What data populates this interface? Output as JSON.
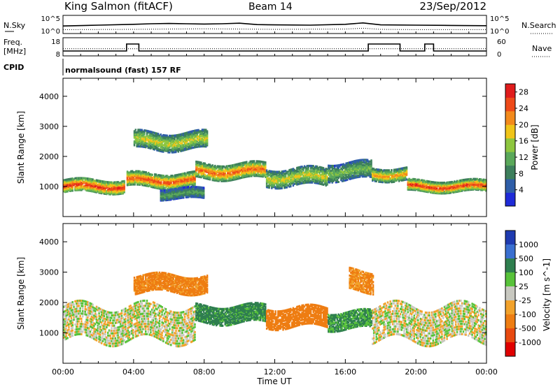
{
  "header": {
    "station": "King Salmon (fitACF)",
    "beam": "Beam 14",
    "date": "23/Sep/2012"
  },
  "noise_panel": {
    "left_label": "N.Sky",
    "left_ticks": [
      "10^5",
      "10^0"
    ],
    "right_ticks": [
      "10^5",
      "10^0"
    ],
    "right_label": "N.Search"
  },
  "freq_panel": {
    "left_label_1": "Freq.",
    "left_label_2": "[MHz]",
    "left_ticks": [
      "18",
      "8"
    ],
    "right_ticks": [
      "60",
      "0"
    ],
    "right_label": "Nave"
  },
  "cpid_panel": {
    "label": "CPID",
    "program": "normalsound (fast) 157 RF"
  },
  "colors": {
    "power_scale": [
      "#1f2bd8",
      "#2f5ea8",
      "#3d7f5c",
      "#5aa85a",
      "#8ec63f",
      "#f0c419",
      "#f38a1c",
      "#ee4a19",
      "#e01c1c"
    ],
    "velocity_scale": [
      "#1f3bb0",
      "#3a6fd0",
      "#2f7f4f",
      "#58c23a",
      "#c8c8c0",
      "#f2a22b",
      "#ee7d12",
      "#e84a10",
      "#e00000"
    ]
  },
  "chart_data": [
    {
      "type": "line",
      "name": "noise",
      "ylim_log10": [
        0,
        5
      ],
      "series": [
        {
          "name": "N.Sky",
          "x": [
            0,
            2,
            4,
            5,
            6,
            7,
            8,
            9,
            10,
            11,
            12,
            14,
            16,
            17,
            18,
            20,
            22,
            24
          ],
          "log10_values": [
            2.2,
            2.5,
            2.8,
            3.0,
            3.1,
            3.0,
            2.9,
            3.0,
            3.2,
            2.7,
            2.6,
            2.5,
            2.8,
            3.3,
            2.6,
            2.5,
            2.4,
            2.3
          ]
        },
        {
          "name": "N.Search",
          "x": [
            0,
            4,
            8,
            12,
            16,
            17,
            18,
            20,
            24
          ],
          "log10_values": [
            0.9,
            1.0,
            1.2,
            1.0,
            1.1,
            1.4,
            1.0,
            0.9,
            0.9
          ]
        }
      ]
    },
    {
      "type": "line",
      "name": "frequency",
      "ylim": [
        8,
        18
      ],
      "series": [
        {
          "name": "Freq.",
          "x": [
            0,
            3.6,
            3.6,
            4.3,
            4.3,
            17.3,
            17.3,
            19.1,
            19.1,
            20.5,
            20.5,
            21.0,
            21.0,
            24
          ],
          "values": [
            10.5,
            10.5,
            15.5,
            15.5,
            10.5,
            10.5,
            15.5,
            15.5,
            10.5,
            10.5,
            15.5,
            15.5,
            10.5,
            10.5
          ]
        },
        {
          "name": "Nave",
          "x": [
            0,
            24
          ],
          "values_right_axis": [
            25,
            25
          ]
        }
      ]
    },
    {
      "type": "heatmap",
      "name": "power",
      "xlim_hours": [
        0,
        24
      ],
      "x_ticks": [
        "00:00",
        "04:00",
        "08:00",
        "12:00",
        "16:00",
        "20:00",
        "00:00"
      ],
      "xlabel": "Time UT",
      "ylim_km": [
        0,
        4600
      ],
      "y_ticks": [
        1000,
        2000,
        3000,
        4000
      ],
      "ylabel": "Slant Range [km]",
      "colorbar_label": "Power [dB]",
      "colorbar_ticks": [
        4,
        8,
        12,
        16,
        20,
        24,
        28
      ],
      "colorbar_range": [
        0,
        30
      ],
      "features": [
        {
          "t0": 0,
          "t1": 3.5,
          "range_km": 1000,
          "width_km": 180,
          "peak_db": 28
        },
        {
          "t0": 3.6,
          "t1": 7.5,
          "range_km": 1200,
          "width_km": 200,
          "peak_db": 26
        },
        {
          "t0": 7.5,
          "t1": 11.5,
          "range_km": 1500,
          "width_km": 220,
          "peak_db": 25
        },
        {
          "t0": 11.5,
          "t1": 15.0,
          "range_km": 1300,
          "width_km": 250,
          "peak_db": 18
        },
        {
          "t0": 15.0,
          "t1": 17.5,
          "range_km": 1500,
          "width_km": 250,
          "peak_db": 14
        },
        {
          "t0": 17.5,
          "t1": 19.5,
          "range_km": 1400,
          "width_km": 180,
          "peak_db": 22
        },
        {
          "t0": 19.5,
          "t1": 24,
          "range_km": 1000,
          "width_km": 160,
          "peak_db": 27
        },
        {
          "t0": 4.0,
          "t1": 8.2,
          "range_km": 2500,
          "width_km": 250,
          "peak_db": 18
        },
        {
          "t0": 5.5,
          "t1": 8.0,
          "range_km": 750,
          "width_km": 150,
          "peak_db": 12
        }
      ]
    },
    {
      "type": "heatmap",
      "name": "velocity",
      "xlim_hours": [
        0,
        24
      ],
      "x_ticks": [
        "00:00",
        "04:00",
        "08:00",
        "12:00",
        "16:00",
        "20:00",
        "00:00"
      ],
      "xlabel": "Time UT",
      "ylim_km": [
        0,
        4600
      ],
      "y_ticks": [
        1000,
        2000,
        3000,
        4000
      ],
      "ylabel": "Slant Range [km]",
      "colorbar_label": "Velocity [m s^-1]",
      "colorbar_ticks": [
        1000,
        500,
        100,
        25,
        -25,
        -100,
        -500,
        -1000
      ],
      "features": [
        {
          "t0": 0,
          "t1": 7.5,
          "range_km": 1300,
          "width_km": 500,
          "velocity": 0
        },
        {
          "t0": 17.5,
          "t1": 24,
          "range_km": 1300,
          "width_km": 500,
          "velocity": 0
        },
        {
          "t0": 7.5,
          "t1": 11.5,
          "range_km": 1600,
          "width_km": 250,
          "velocity": 150
        },
        {
          "t0": 11.5,
          "t1": 15.0,
          "range_km": 1500,
          "width_km": 280,
          "velocity": -200
        },
        {
          "t0": 15.0,
          "t1": 17.5,
          "range_km": 1400,
          "width_km": 250,
          "velocity": 120
        },
        {
          "t0": 4.0,
          "t1": 8.2,
          "range_km": 2600,
          "width_km": 250,
          "velocity": -150
        },
        {
          "t0": 16.2,
          "t1": 17.6,
          "range_km": 2700,
          "width_km": 300,
          "velocity": -120
        }
      ]
    }
  ]
}
